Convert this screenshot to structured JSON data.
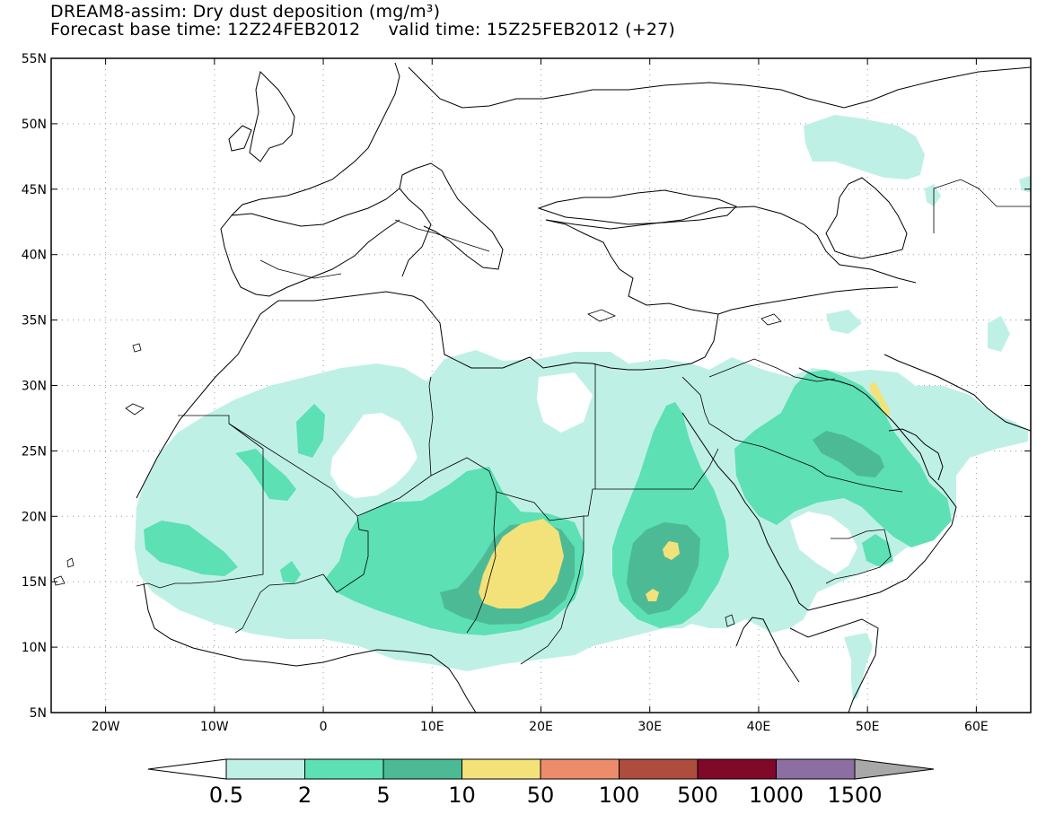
{
  "title": {
    "line1": "DREAM8-assim: Dry dust deposition (mg/m³)",
    "line2_base": "Forecast base time: 12Z24FEB2012",
    "line2_valid": "valid time: 15Z25FEB2012 (+27)"
  },
  "map": {
    "lon_range": [
      -25,
      65
    ],
    "lat_range": [
      5,
      55
    ],
    "lon_ticks": [
      {
        "value": -20,
        "label": "20W"
      },
      {
        "value": -10,
        "label": "10W"
      },
      {
        "value": 0,
        "label": "0"
      },
      {
        "value": 10,
        "label": "10E"
      },
      {
        "value": 20,
        "label": "20E"
      },
      {
        "value": 30,
        "label": "30E"
      },
      {
        "value": 40,
        "label": "40E"
      },
      {
        "value": 50,
        "label": "50E"
      },
      {
        "value": 60,
        "label": "60E"
      }
    ],
    "lat_ticks": [
      {
        "value": 55,
        "label": "55N"
      },
      {
        "value": 50,
        "label": "50N"
      },
      {
        "value": 45,
        "label": "45N"
      },
      {
        "value": 40,
        "label": "40N"
      },
      {
        "value": 35,
        "label": "35N"
      },
      {
        "value": 30,
        "label": "30N"
      },
      {
        "value": 25,
        "label": "25N"
      },
      {
        "value": 20,
        "label": "20N"
      },
      {
        "value": 15,
        "label": "15N"
      },
      {
        "value": 10,
        "label": "10N"
      },
      {
        "value": 5,
        "label": "5N"
      }
    ],
    "grid": "dotted"
  },
  "colorbar": {
    "labels": [
      "0.5",
      "2",
      "5",
      "10",
      "50",
      "100",
      "500",
      "1000",
      "1500"
    ],
    "colors": [
      "#bff0e6",
      "#5ce0b4",
      "#4dba96",
      "#f3e27a",
      "#ec8c6a",
      "#ae4c3e",
      "#800828",
      "#8c6ea2"
    ],
    "under_color": "#ffffff",
    "over_color": "#a8a8a8"
  }
}
